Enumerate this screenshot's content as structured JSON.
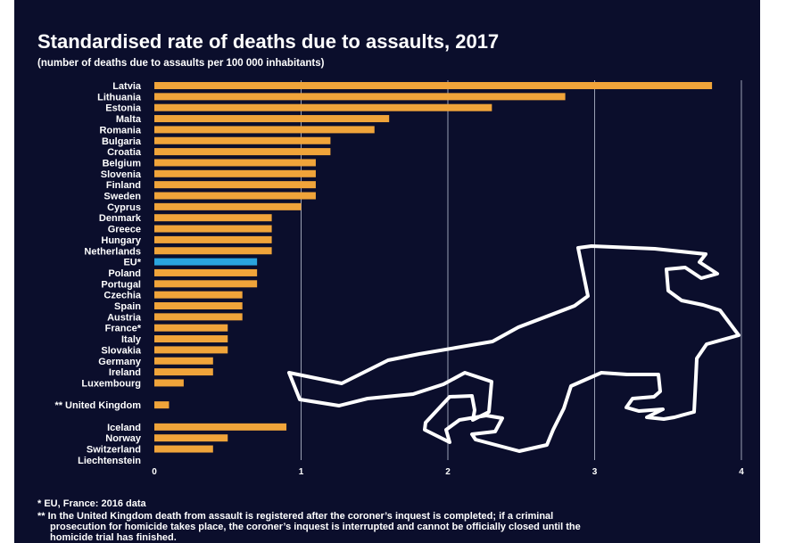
{
  "chart_data": {
    "type": "bar",
    "orientation": "horizontal",
    "title": "Standardised rate of deaths due to assaults, 2017",
    "subtitle": "(number of deaths due to assaults per 100 000 inhabitants)",
    "categories": [
      "Latvia",
      "Lithuania",
      "Estonia",
      "Malta",
      "Romania",
      "Bulgaria",
      "Croatia",
      "Belgium",
      "Slovenia",
      "Finland",
      "Sweden",
      "Cyprus",
      "Denmark",
      "Greece",
      "Hungary",
      "Netherlands",
      "EU*",
      "Poland",
      "Portugal",
      "Czechia",
      "Spain",
      "Austria",
      "France*",
      "Italy",
      "Slovakia",
      "Germany",
      "Ireland",
      "Luxembourg",
      "** United Kingdom",
      "Iceland",
      "Norway",
      "Switzerland",
      "Liechtenstein"
    ],
    "values": [
      3.8,
      2.8,
      2.3,
      1.6,
      1.5,
      1.2,
      1.2,
      1.1,
      1.1,
      1.1,
      1.1,
      1.0,
      0.8,
      0.8,
      0.8,
      0.8,
      0.7,
      0.7,
      0.7,
      0.6,
      0.6,
      0.6,
      0.5,
      0.5,
      0.5,
      0.4,
      0.4,
      0.2,
      0.1,
      0.9,
      0.5,
      0.4,
      0.0
    ],
    "groups": [
      [
        "Latvia",
        "Lithuania",
        "Estonia",
        "Malta",
        "Romania",
        "Bulgaria",
        "Croatia",
        "Belgium",
        "Slovenia",
        "Finland",
        "Sweden",
        "Cyprus",
        "Denmark",
        "Greece",
        "Hungary",
        "Netherlands",
        "EU*",
        "Poland",
        "Portugal",
        "Czechia",
        "Spain",
        "Austria",
        "France*",
        "Italy",
        "Slovakia",
        "Germany",
        "Ireland",
        "Luxembourg"
      ],
      [
        "** United Kingdom"
      ],
      [
        "Iceland",
        "Norway",
        "Switzerland",
        "Liechtenstein"
      ]
    ],
    "highlight_category": "EU*",
    "xlim": [
      0,
      4
    ],
    "xticks": [
      "0",
      "1",
      "2",
      "3",
      "4"
    ],
    "xlabel": "",
    "ylabel": "",
    "grid": "vertical",
    "colors": {
      "background": "#0b0e2c",
      "bar": "#f0a43a",
      "highlight": "#2aa4de",
      "text": "#ffffff",
      "grid": "#9aa0b4"
    },
    "decoration": "chalk-body-outline"
  },
  "footnotes": [
    "* EU, France: 2016 data",
    "** In the United Kingdom death from assault is registered after the coroner’s inquest is completed; if a criminal",
    "prosecution for homicide takes place, the coroner’s inquest is interrupted and cannot be officially closed until the",
    "homicide trial has finished."
  ]
}
